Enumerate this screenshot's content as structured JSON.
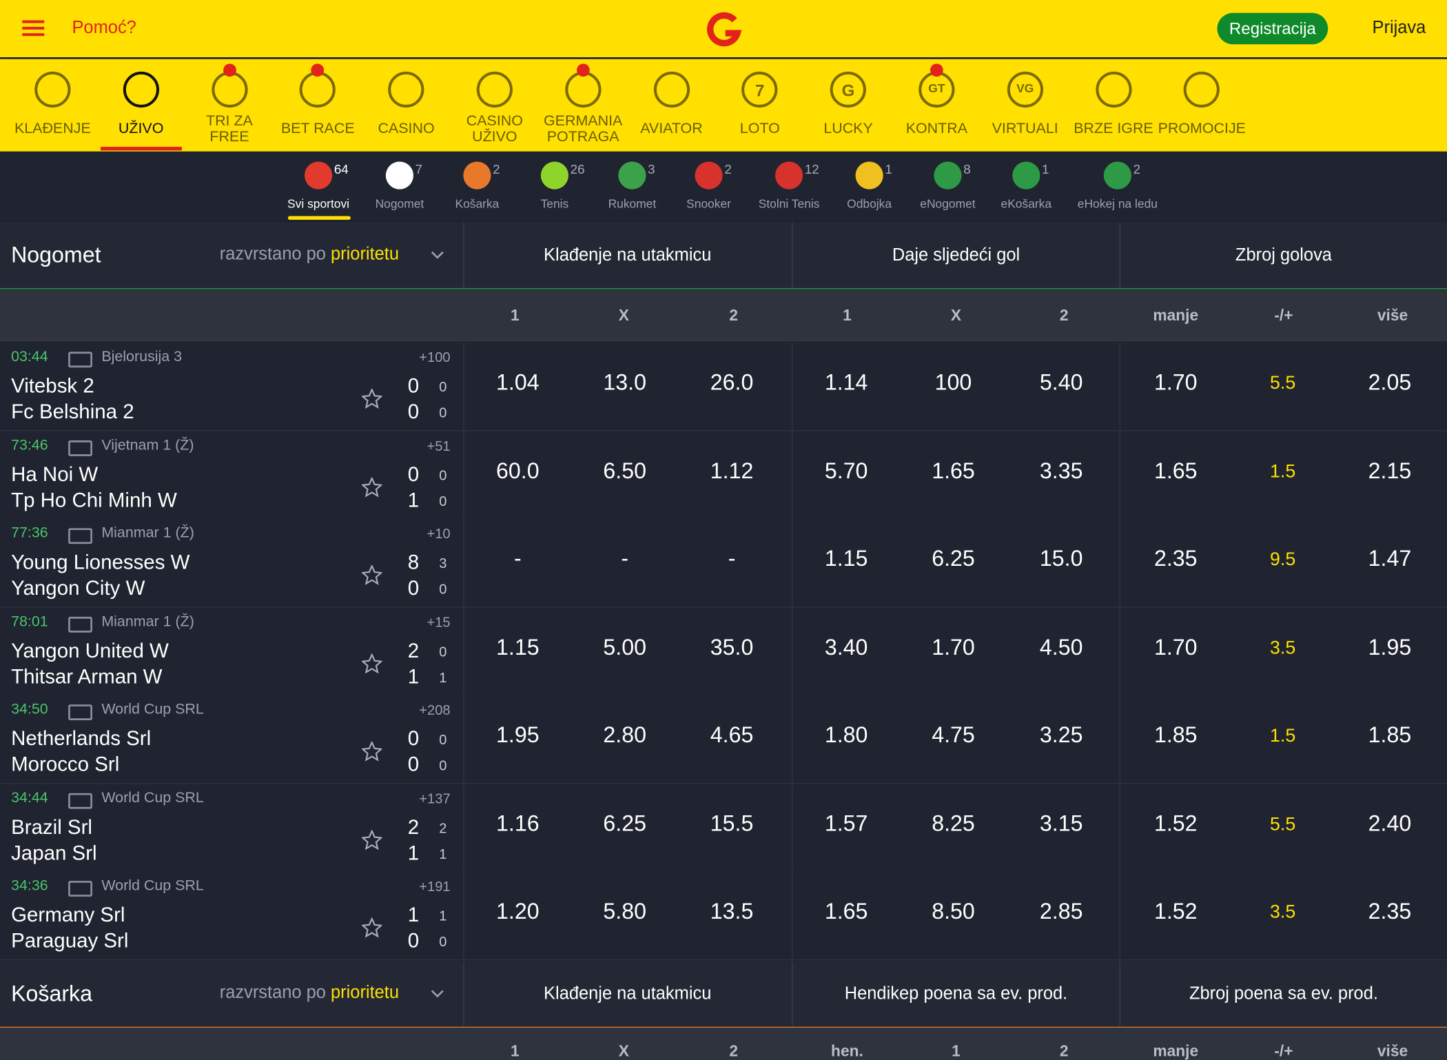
{
  "header": {
    "help": "Pomoć?",
    "register": "Registracija",
    "login": "Prijava"
  },
  "nav": [
    {
      "label": "KLAĐENJE"
    },
    {
      "label": "UŽIVO",
      "active": true
    },
    {
      "label": "TRI ZA FREE",
      "dot": true
    },
    {
      "label": "BET RACE",
      "dot": true
    },
    {
      "label": "CASINO"
    },
    {
      "label": "CASINO UŽIVO"
    },
    {
      "label": "GERMANIA POTRAGA",
      "dot": true
    },
    {
      "label": "AVIATOR"
    },
    {
      "label": "LOTO",
      "icon_text": "7"
    },
    {
      "label": "LUCKY",
      "icon_text": "G"
    },
    {
      "label": "KONTRA",
      "icon_text": "GT",
      "dot": true
    },
    {
      "label": "VIRTUALI",
      "icon_text": "VG"
    },
    {
      "label": "BRZE IGRE"
    },
    {
      "label": "PROMOCIJE"
    }
  ],
  "sports": [
    {
      "name": "Svi sportovi",
      "count": 64,
      "color": "#e23b2e"
    },
    {
      "name": "Nogomet",
      "count": 7,
      "color": "#ffffff"
    },
    {
      "name": "Košarka",
      "count": 2,
      "color": "#e8782a"
    },
    {
      "name": "Tenis",
      "count": 26,
      "color": "#8fd42a"
    },
    {
      "name": "Rukomet",
      "count": 3,
      "color": "#3ca24a"
    },
    {
      "name": "Snooker",
      "count": 2,
      "color": "#d8322c"
    },
    {
      "name": "Stolni Tenis",
      "count": 12,
      "color": "#d8322c"
    },
    {
      "name": "Odbojka",
      "count": 1,
      "color": "#f0c020"
    },
    {
      "name": "eNogomet",
      "count": 8,
      "color": "#2e9a45"
    },
    {
      "name": "eKošarka",
      "count": 1,
      "color": "#2e9a45"
    },
    {
      "name": "eHokej na ledu",
      "count": 2,
      "color": "#2e9a45"
    }
  ],
  "sections": [
    {
      "title": "Nogomet",
      "sort_prefix": "razvrstano po",
      "sort_key": "prioritetu",
      "markets": [
        "Klađenje na utakmicu",
        "Daje sljedeći gol",
        "Zbroj golova"
      ],
      "columns": [
        "1",
        "X",
        "2",
        "1",
        "X",
        "2",
        "manje",
        "-/+",
        "više"
      ],
      "matches": [
        {
          "time": "03:44",
          "league": "Bjelorusija 3",
          "more": "+100",
          "home": "Vitebsk 2",
          "away": "Fc Belshina 2",
          "home_score": 0,
          "away_score": 0,
          "home_period": 0,
          "away_period": 0,
          "odds": [
            "1.04",
            "13.0",
            "26.0",
            "1.14",
            "100",
            "5.40",
            "1.70",
            "5.5",
            "2.05"
          ]
        },
        {
          "time": "73:46",
          "league": "Vijetnam 1 (Ž)",
          "more": "+51",
          "home": "Ha Noi W",
          "away": "Tp Ho Chi Minh W",
          "home_score": 0,
          "away_score": 1,
          "home_period": 0,
          "away_period": 0,
          "odds": [
            "60.0",
            "6.50",
            "1.12",
            "5.70",
            "1.65",
            "3.35",
            "1.65",
            "1.5",
            "2.15"
          ]
        },
        {
          "time": "77:36",
          "league": "Mianmar 1 (Ž)",
          "more": "+10",
          "home": "Young Lionesses W",
          "away": "Yangon City W",
          "home_score": 8,
          "away_score": 0,
          "home_period": 3,
          "away_period": 0,
          "odds": [
            "-",
            "-",
            "-",
            "1.15",
            "6.25",
            "15.0",
            "2.35",
            "9.5",
            "1.47"
          ]
        },
        {
          "time": "78:01",
          "league": "Mianmar 1 (Ž)",
          "more": "+15",
          "home": "Yangon United W",
          "away": "Thitsar Arman W",
          "home_score": 2,
          "away_score": 1,
          "home_period": 0,
          "away_period": 1,
          "odds": [
            "1.15",
            "5.00",
            "35.0",
            "3.40",
            "1.70",
            "4.50",
            "1.70",
            "3.5",
            "1.95"
          ]
        },
        {
          "time": "34:50",
          "league": "World Cup SRL",
          "more": "+208",
          "home": "Netherlands Srl",
          "away": "Morocco Srl",
          "home_score": 0,
          "away_score": 0,
          "home_period": 0,
          "away_period": 0,
          "odds": [
            "1.95",
            "2.80",
            "4.65",
            "1.80",
            "4.75",
            "3.25",
            "1.85",
            "1.5",
            "1.85"
          ]
        },
        {
          "time": "34:44",
          "league": "World Cup SRL",
          "more": "+137",
          "home": "Brazil Srl",
          "away": "Japan Srl",
          "home_score": 2,
          "away_score": 1,
          "home_period": 2,
          "away_period": 1,
          "odds": [
            "1.16",
            "6.25",
            "15.5",
            "1.57",
            "8.25",
            "3.15",
            "1.52",
            "5.5",
            "2.40"
          ]
        },
        {
          "time": "34:36",
          "league": "World Cup SRL",
          "more": "+191",
          "home": "Germany Srl",
          "away": "Paraguay Srl",
          "home_score": 1,
          "away_score": 0,
          "home_period": 1,
          "away_period": 0,
          "odds": [
            "1.20",
            "5.80",
            "13.5",
            "1.65",
            "8.50",
            "2.85",
            "1.52",
            "3.5",
            "2.35"
          ]
        }
      ]
    },
    {
      "title": "Košarka",
      "sort_prefix": "razvrstano po",
      "sort_key": "prioritetu",
      "markets": [
        "Klađenje na utakmicu",
        "Hendikep poena sa ev. prod.",
        "Zbroj poena sa ev. prod."
      ],
      "columns": [
        "1",
        "X",
        "2",
        "hen.",
        "1",
        "2",
        "manje",
        "-/+",
        "više"
      ],
      "matches": []
    }
  ]
}
